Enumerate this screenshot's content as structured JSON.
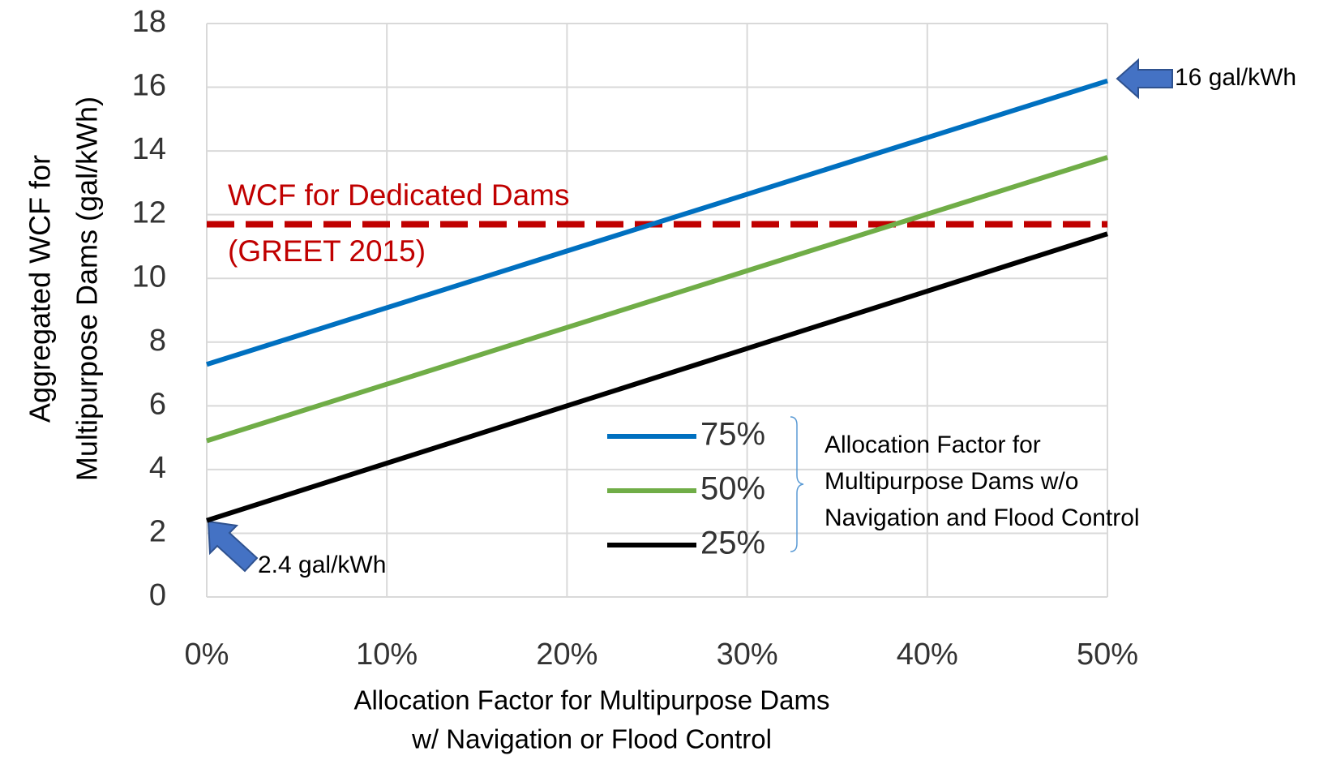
{
  "chart_data": {
    "type": "line",
    "x_label": [
      "Allocation Factor for Multipurpose Dams",
      "w/ Navigation or Flood Control"
    ],
    "y_label": [
      "Aggregated WCF for",
      "Multipurpose Dams (gal/kWh)"
    ],
    "x": [
      0,
      50
    ],
    "series": [
      {
        "name": "75%",
        "color": "#0070c0",
        "values": [
          7.3,
          16.2
        ]
      },
      {
        "name": "50%",
        "color": "#70ad47",
        "values": [
          4.9,
          13.8
        ]
      },
      {
        "name": "25%",
        "color": "#000000",
        "values": [
          2.4,
          11.4
        ]
      }
    ],
    "reference_line": {
      "value": 11.7,
      "color": "#c00000",
      "label": [
        "WCF for Dedicated Dams",
        "(GREET 2015)"
      ]
    },
    "legend_note": [
      "Allocation Factor for",
      "Multipurpose Dams w/o",
      "Navigation and Flood Control"
    ],
    "annotations": [
      "16 gal/kWh",
      "2.4 gal/kWh"
    ],
    "xlim": [
      0,
      50
    ],
    "xticks": [
      {
        "value": 0,
        "label": "0%"
      },
      {
        "value": 10,
        "label": "10%"
      },
      {
        "value": 20,
        "label": "20%"
      },
      {
        "value": 30,
        "label": "30%"
      },
      {
        "value": 40,
        "label": "40%"
      },
      {
        "value": 50,
        "label": "50%"
      }
    ],
    "ylim": [
      0,
      18
    ],
    "yticks": [
      0,
      2,
      4,
      6,
      8,
      10,
      12,
      14,
      16,
      18
    ],
    "grid": true
  }
}
